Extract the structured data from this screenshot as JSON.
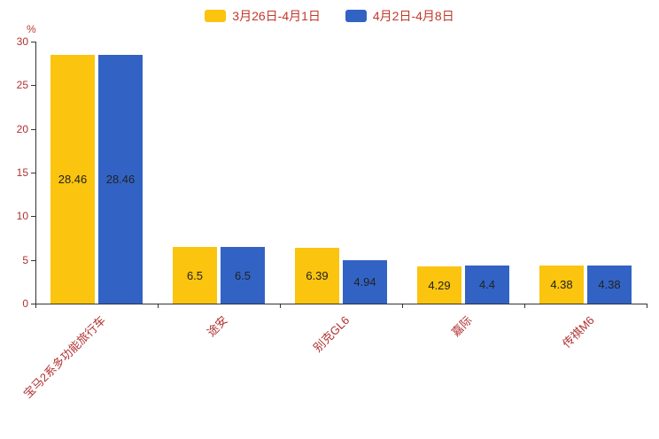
{
  "chart_data": {
    "type": "bar",
    "title": "",
    "categories": [
      "宝马2系多功能旅行车",
      "途安",
      "别克GL6",
      "嘉际",
      "传祺M6"
    ],
    "series": [
      {
        "name": "3月26日-4月1日",
        "color": "#fbc40e",
        "values": [
          28.46,
          6.5,
          6.39,
          4.29,
          4.38
        ]
      },
      {
        "name": "4月2日-4月8日",
        "color": "#3263c4",
        "values": [
          28.46,
          6.5,
          4.94,
          4.4,
          4.38
        ]
      }
    ],
    "value_labels": [
      [
        "28.46",
        "6.5",
        "6.39",
        "4.29",
        "4.38"
      ],
      [
        "28.46",
        "6.5",
        "4.94",
        "4.4",
        "4.38"
      ]
    ],
    "xlabel": "",
    "ylabel": "%",
    "ylim": [
      0,
      30
    ],
    "yticks": [
      0,
      5,
      10,
      15,
      20,
      25,
      30
    ],
    "grid": false,
    "legend_position": "top",
    "colors": {
      "axis": "#333333",
      "axis_text": "#b03030",
      "legend_text": "#c0392b",
      "bar_label": "#222222"
    }
  }
}
